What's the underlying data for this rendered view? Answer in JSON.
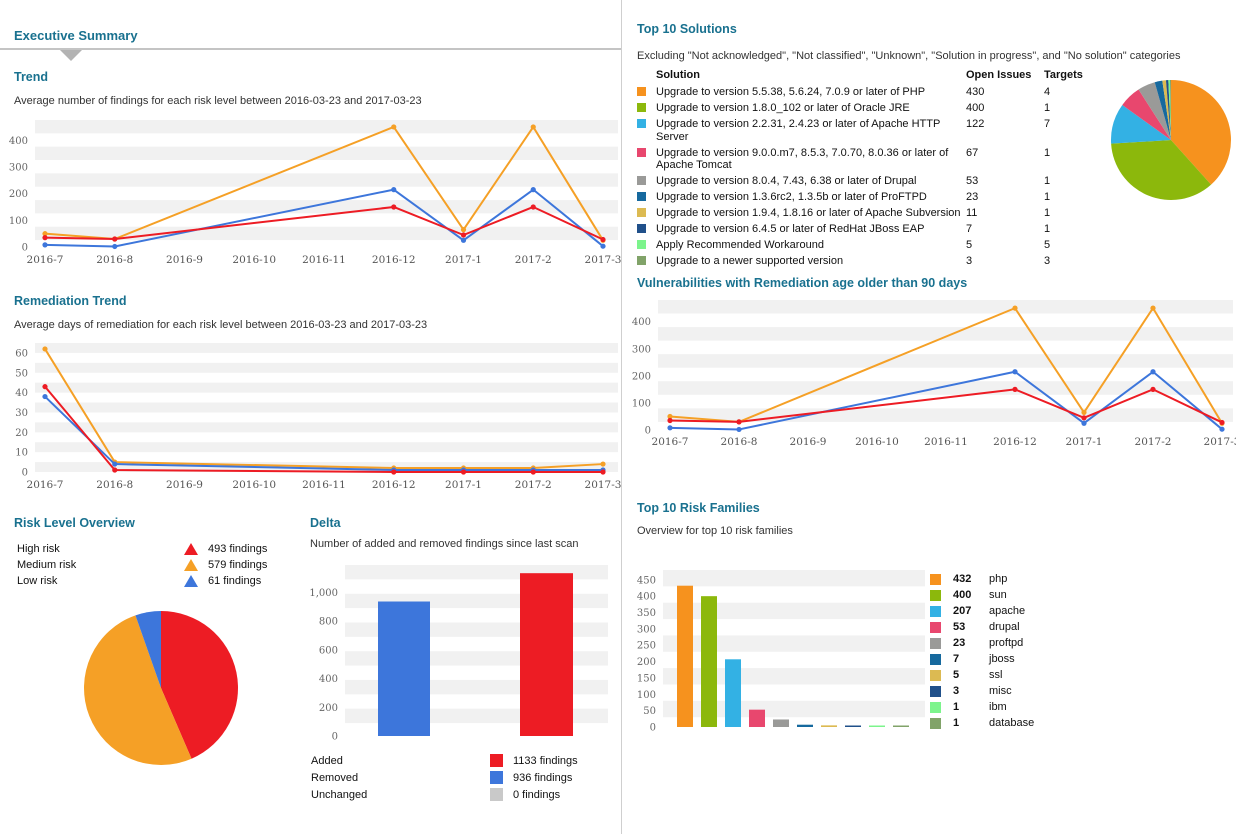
{
  "left": {
    "header": "Executive Summary",
    "trend": {
      "title": "Trend",
      "subtitle": "Average number of findings for each risk level between 2016-03-23 and 2017-03-23"
    },
    "remediation": {
      "title": "Remediation Trend",
      "subtitle": "Average days of remediation for each risk level between 2016-03-23 and 2017-03-23"
    },
    "risk_overview": {
      "title": "Risk Level Overview",
      "legend": [
        {
          "label": "High risk",
          "value": "493 findings",
          "color": "#ed1c24"
        },
        {
          "label": "Medium risk",
          "value": "579 findings",
          "color": "#f5a026"
        },
        {
          "label": "Low risk",
          "value": "61 findings",
          "color": "#3d76db"
        }
      ]
    },
    "delta": {
      "title": "Delta",
      "subtitle": "Number of added and removed findings since last scan",
      "legend": [
        {
          "label": "Added",
          "value": "1133 findings",
          "color": "#ed1c24"
        },
        {
          "label": "Removed",
          "value": "936 findings",
          "color": "#3d76db"
        },
        {
          "label": "Unchanged",
          "value": "0 findings",
          "color": "#c9c9c9"
        }
      ]
    }
  },
  "right": {
    "solutions": {
      "title": "Top 10 Solutions",
      "note": "Excluding \"Not acknowledged\", \"Not classified\", \"Unknown\", \"Solution in progress\", and \"No solution\" categories",
      "columns": [
        "Solution",
        "Open Issues",
        "Targets"
      ],
      "rows": [
        {
          "color": "#f6921e",
          "solution": "Upgrade to version 5.5.38, 5.6.24, 7.0.9 or later of PHP",
          "open_issues": 430,
          "targets": 4
        },
        {
          "color": "#8cb80c",
          "solution": "Upgrade to version 1.8.0_102 or later of Oracle JRE",
          "open_issues": 400,
          "targets": 1
        },
        {
          "color": "#33b1e4",
          "solution": "Upgrade to version 2.2.31, 2.4.23 or later of Apache HTTP Server",
          "open_issues": 122,
          "targets": 7
        },
        {
          "color": "#e8476e",
          "solution": "Upgrade to version 9.0.0.m7, 8.5.3, 7.0.70, 8.0.36 or later of Apache Tomcat",
          "open_issues": 67,
          "targets": 1
        },
        {
          "color": "#9a9a98",
          "solution": "Upgrade to version 8.0.4, 7.43, 6.38 or later of Drupal",
          "open_issues": 53,
          "targets": 1
        },
        {
          "color": "#16699e",
          "solution": "Upgrade to version 1.3.6rc2, 1.3.5b or later of ProFTPD",
          "open_issues": 23,
          "targets": 1
        },
        {
          "color": "#dcba52",
          "solution": "Upgrade to version 1.9.4, 1.8.16 or later of Apache Subversion",
          "open_issues": 11,
          "targets": 1
        },
        {
          "color": "#20508a",
          "solution": "Upgrade to version 6.4.5 or later of RedHat JBoss EAP",
          "open_issues": 7,
          "targets": 1
        },
        {
          "color": "#7cf48c",
          "solution": "Apply Recommended Workaround",
          "open_issues": 5,
          "targets": 5
        },
        {
          "color": "#81a369",
          "solution": "Upgrade to a newer supported version",
          "open_issues": 3,
          "targets": 3
        }
      ]
    },
    "vulnerabilities": {
      "title": "Vulnerabilities with Remediation age older than 90 days"
    },
    "risk_families": {
      "title": "Top 10 Risk Families",
      "subtitle": "Overview for top 10 risk families",
      "legend": [
        {
          "value": 432,
          "label": "php",
          "color": "#f6921e"
        },
        {
          "value": 400,
          "label": "sun",
          "color": "#8cb80c"
        },
        {
          "value": 207,
          "label": "apache",
          "color": "#33b1e4"
        },
        {
          "value": 53,
          "label": "drupal",
          "color": "#e8476e"
        },
        {
          "value": 23,
          "label": "proftpd",
          "color": "#9a9a98"
        },
        {
          "value": 7,
          "label": "jboss",
          "color": "#16699e"
        },
        {
          "value": 5,
          "label": "ssl",
          "color": "#dcba52"
        },
        {
          "value": 3,
          "label": "misc",
          "color": "#20508a"
        },
        {
          "value": 1,
          "label": "ibm",
          "color": "#7cf48c"
        },
        {
          "value": 1,
          "label": "database",
          "color": "#81a369"
        }
      ]
    }
  },
  "chart_data": [
    {
      "id": "trend",
      "type": "line",
      "title": "Trend",
      "categories": [
        "2016-7",
        "2016-8",
        "2016-9",
        "2016-10",
        "2016-11",
        "2016-12",
        "2017-1",
        "2017-2",
        "2017-3"
      ],
      "series": [
        {
          "name": "Medium risk",
          "color": "#f5a026",
          "x": [
            "2016-7",
            "2016-8",
            "2016-12",
            "2017-1",
            "2017-2",
            "2017-3"
          ],
          "values": [
            50,
            30,
            450,
            65,
            450,
            25
          ]
        },
        {
          "name": "Low risk",
          "color": "#3d76db",
          "x": [
            "2016-7",
            "2016-8",
            "2016-12",
            "2017-1",
            "2017-2",
            "2017-3"
          ],
          "values": [
            8,
            2,
            215,
            25,
            215,
            3
          ]
        },
        {
          "name": "High risk",
          "color": "#ed1c24",
          "x": [
            "2016-7",
            "2016-8",
            "2016-12",
            "2017-1",
            "2017-2",
            "2017-3"
          ],
          "values": [
            35,
            30,
            150,
            45,
            150,
            28
          ]
        }
      ],
      "ylim": [
        0,
        476
      ],
      "yticks": [
        0,
        100,
        200,
        300,
        400
      ],
      "stripe": 50,
      "grid": "striped",
      "legend": "none"
    },
    {
      "id": "remediation",
      "type": "line",
      "title": "Remediation Trend",
      "categories": [
        "2016-7",
        "2016-8",
        "2016-9",
        "2016-10",
        "2016-11",
        "2016-12",
        "2017-1",
        "2017-2",
        "2017-3"
      ],
      "series": [
        {
          "name": "Medium risk",
          "color": "#f5a026",
          "x": [
            "2016-7",
            "2016-8",
            "2016-12",
            "2017-1",
            "2017-2",
            "2017-3"
          ],
          "values": [
            62,
            5,
            2,
            2,
            2,
            4
          ]
        },
        {
          "name": "Low risk",
          "color": "#3d76db",
          "x": [
            "2016-7",
            "2016-8",
            "2016-12",
            "2017-1",
            "2017-2",
            "2017-3"
          ],
          "values": [
            38,
            4,
            1,
            1,
            1,
            1
          ]
        },
        {
          "name": "High risk",
          "color": "#ed1c24",
          "x": [
            "2016-7",
            "2016-8",
            "2016-12",
            "2017-1",
            "2017-2",
            "2017-3"
          ],
          "values": [
            43,
            1,
            0,
            0,
            0,
            0
          ]
        }
      ],
      "ylim": [
        0,
        65
      ],
      "yticks": [
        0,
        10,
        20,
        30,
        40,
        50,
        60
      ],
      "stripe": 5,
      "grid": "striped",
      "legend": "none"
    },
    {
      "id": "vulnerabilities",
      "type": "line",
      "title": "Vulnerabilities with Remediation age older than 90 days",
      "categories": [
        "2016-7",
        "2016-8",
        "2016-9",
        "2016-10",
        "2016-11",
        "2016-12",
        "2017-1",
        "2017-2",
        "2017-3"
      ],
      "series": [
        {
          "name": "Medium risk",
          "color": "#f5a026",
          "x": [
            "2016-7",
            "2016-8",
            "2016-12",
            "2017-1",
            "2017-2",
            "2017-3"
          ],
          "values": [
            50,
            30,
            450,
            65,
            450,
            25
          ]
        },
        {
          "name": "Low risk",
          "color": "#3d76db",
          "x": [
            "2016-7",
            "2016-8",
            "2016-12",
            "2017-1",
            "2017-2",
            "2017-3"
          ],
          "values": [
            8,
            2,
            215,
            25,
            215,
            3
          ]
        },
        {
          "name": "High risk",
          "color": "#ed1c24",
          "x": [
            "2016-7",
            "2016-8",
            "2016-12",
            "2017-1",
            "2017-2",
            "2017-3"
          ],
          "values": [
            35,
            30,
            150,
            45,
            150,
            28
          ]
        }
      ],
      "ylim": [
        0,
        480
      ],
      "yticks": [
        0,
        100,
        200,
        300,
        400
      ],
      "stripe": 50,
      "grid": "striped",
      "legend": "none"
    },
    {
      "id": "risk_pie",
      "type": "pie",
      "title": "Risk Level Overview",
      "labels": [
        "High risk",
        "Medium risk",
        "Low risk"
      ],
      "values": [
        493,
        579,
        61
      ],
      "colors": [
        "#ed1c24",
        "#f5a026",
        "#3d76db"
      ]
    },
    {
      "id": "delta_bars",
      "type": "bar",
      "title": "Delta",
      "categories": [
        "Removed",
        "Added"
      ],
      "values": [
        936,
        1133
      ],
      "colors": [
        "#3d76db",
        "#ed1c24"
      ],
      "ylim": [
        0,
        1190
      ],
      "yticks": [
        0,
        200,
        400,
        600,
        800,
        1000
      ],
      "stripe": 100,
      "grid": "striped"
    },
    {
      "id": "solutions_pie",
      "type": "pie",
      "title": "Top 10 Solutions",
      "labels": [
        "PHP",
        "Oracle JRE",
        "Apache HTTP Server",
        "Apache Tomcat",
        "Drupal",
        "ProFTPD",
        "Apache Subversion",
        "RedHat JBoss EAP",
        "Apply Recommended Workaround",
        "Upgrade to a newer supported version"
      ],
      "values": [
        430,
        400,
        122,
        67,
        53,
        23,
        11,
        7,
        5,
        3
      ],
      "colors": [
        "#f6921e",
        "#8cb80c",
        "#33b1e4",
        "#e8476e",
        "#9a9a98",
        "#16699e",
        "#dcba52",
        "#20508a",
        "#7cf48c",
        "#81a369"
      ]
    },
    {
      "id": "families_bars",
      "type": "bar",
      "title": "Top 10 Risk Families",
      "categories": [
        "php",
        "sun",
        "apache",
        "drupal",
        "proftpd",
        "jboss",
        "ssl",
        "misc",
        "ibm",
        "database"
      ],
      "values": [
        432,
        400,
        207,
        53,
        23,
        7,
        5,
        3,
        1,
        1
      ],
      "colors": [
        "#f6921e",
        "#8cb80c",
        "#33b1e4",
        "#e8476e",
        "#9a9a98",
        "#16699e",
        "#dcba52",
        "#20508a",
        "#7cf48c",
        "#81a369"
      ],
      "ylim": [
        0,
        480
      ],
      "yticks": [
        0,
        50,
        100,
        150,
        200,
        250,
        300,
        350,
        400,
        450
      ],
      "stripe": 50,
      "grid": "striped"
    }
  ]
}
